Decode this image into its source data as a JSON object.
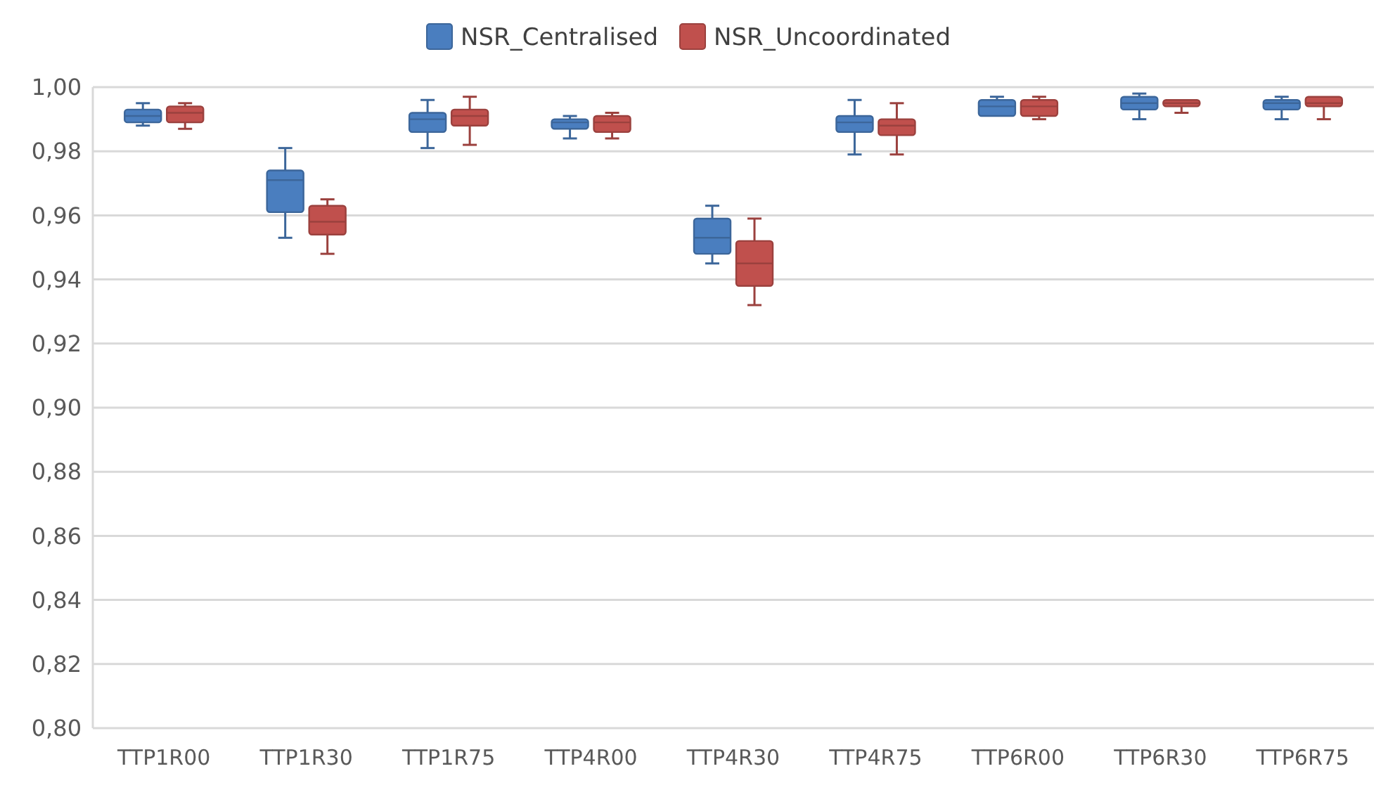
{
  "chart_data": {
    "type": "box",
    "categories": [
      "TTP1R00",
      "TTP1R30",
      "TTP1R75",
      "TTP4R00",
      "TTP4R30",
      "TTP4R75",
      "TTP6R00",
      "TTP6R30",
      "TTP6R75"
    ],
    "series": [
      {
        "name": "NSR_Centralised",
        "color": "#4a7ebf",
        "boxes": [
          {
            "low": 0.988,
            "q1": 0.989,
            "median": 0.991,
            "q3": 0.993,
            "high": 0.995
          },
          {
            "low": 0.953,
            "q1": 0.961,
            "median": 0.971,
            "q3": 0.974,
            "high": 0.981
          },
          {
            "low": 0.981,
            "q1": 0.986,
            "median": 0.99,
            "q3": 0.992,
            "high": 0.996
          },
          {
            "low": 0.984,
            "q1": 0.987,
            "median": 0.989,
            "q3": 0.99,
            "high": 0.991
          },
          {
            "low": 0.945,
            "q1": 0.948,
            "median": 0.953,
            "q3": 0.959,
            "high": 0.963
          },
          {
            "low": 0.979,
            "q1": 0.986,
            "median": 0.989,
            "q3": 0.991,
            "high": 0.996
          },
          {
            "low": 0.991,
            "q1": 0.991,
            "median": 0.994,
            "q3": 0.996,
            "high": 0.997
          },
          {
            "low": 0.99,
            "q1": 0.993,
            "median": 0.995,
            "q3": 0.997,
            "high": 0.998
          },
          {
            "low": 0.99,
            "q1": 0.993,
            "median": 0.995,
            "q3": 0.996,
            "high": 0.997
          }
        ]
      },
      {
        "name": "NSR_Uncoordinated",
        "color": "#c0504d",
        "boxes": [
          {
            "low": 0.987,
            "q1": 0.989,
            "median": 0.992,
            "q3": 0.994,
            "high": 0.995
          },
          {
            "low": 0.948,
            "q1": 0.954,
            "median": 0.958,
            "q3": 0.963,
            "high": 0.965
          },
          {
            "low": 0.982,
            "q1": 0.988,
            "median": 0.991,
            "q3": 0.993,
            "high": 0.997
          },
          {
            "low": 0.984,
            "q1": 0.986,
            "median": 0.989,
            "q3": 0.991,
            "high": 0.992
          },
          {
            "low": 0.932,
            "q1": 0.938,
            "median": 0.945,
            "q3": 0.952,
            "high": 0.959
          },
          {
            "low": 0.979,
            "q1": 0.985,
            "median": 0.988,
            "q3": 0.99,
            "high": 0.995
          },
          {
            "low": 0.99,
            "q1": 0.991,
            "median": 0.994,
            "q3": 0.996,
            "high": 0.997
          },
          {
            "low": 0.992,
            "q1": 0.994,
            "median": 0.995,
            "q3": 0.996,
            "high": 0.996
          },
          {
            "low": 0.99,
            "q1": 0.994,
            "median": 0.995,
            "q3": 0.997,
            "high": 0.997
          }
        ]
      }
    ],
    "ylim": [
      0.8,
      1.0
    ],
    "yticks": [
      {
        "value": 0.8,
        "label": "0,80"
      },
      {
        "value": 0.82,
        "label": "0,82"
      },
      {
        "value": 0.84,
        "label": "0,84"
      },
      {
        "value": 0.86,
        "label": "0,86"
      },
      {
        "value": 0.88,
        "label": "0,88"
      },
      {
        "value": 0.9,
        "label": "0,90"
      },
      {
        "value": 0.92,
        "label": "0,92"
      },
      {
        "value": 0.94,
        "label": "0,94"
      },
      {
        "value": 0.96,
        "label": "0,96"
      },
      {
        "value": 0.98,
        "label": "0,98"
      },
      {
        "value": 1.0,
        "label": "1,00"
      }
    ],
    "grid": "y",
    "legend": "top"
  }
}
